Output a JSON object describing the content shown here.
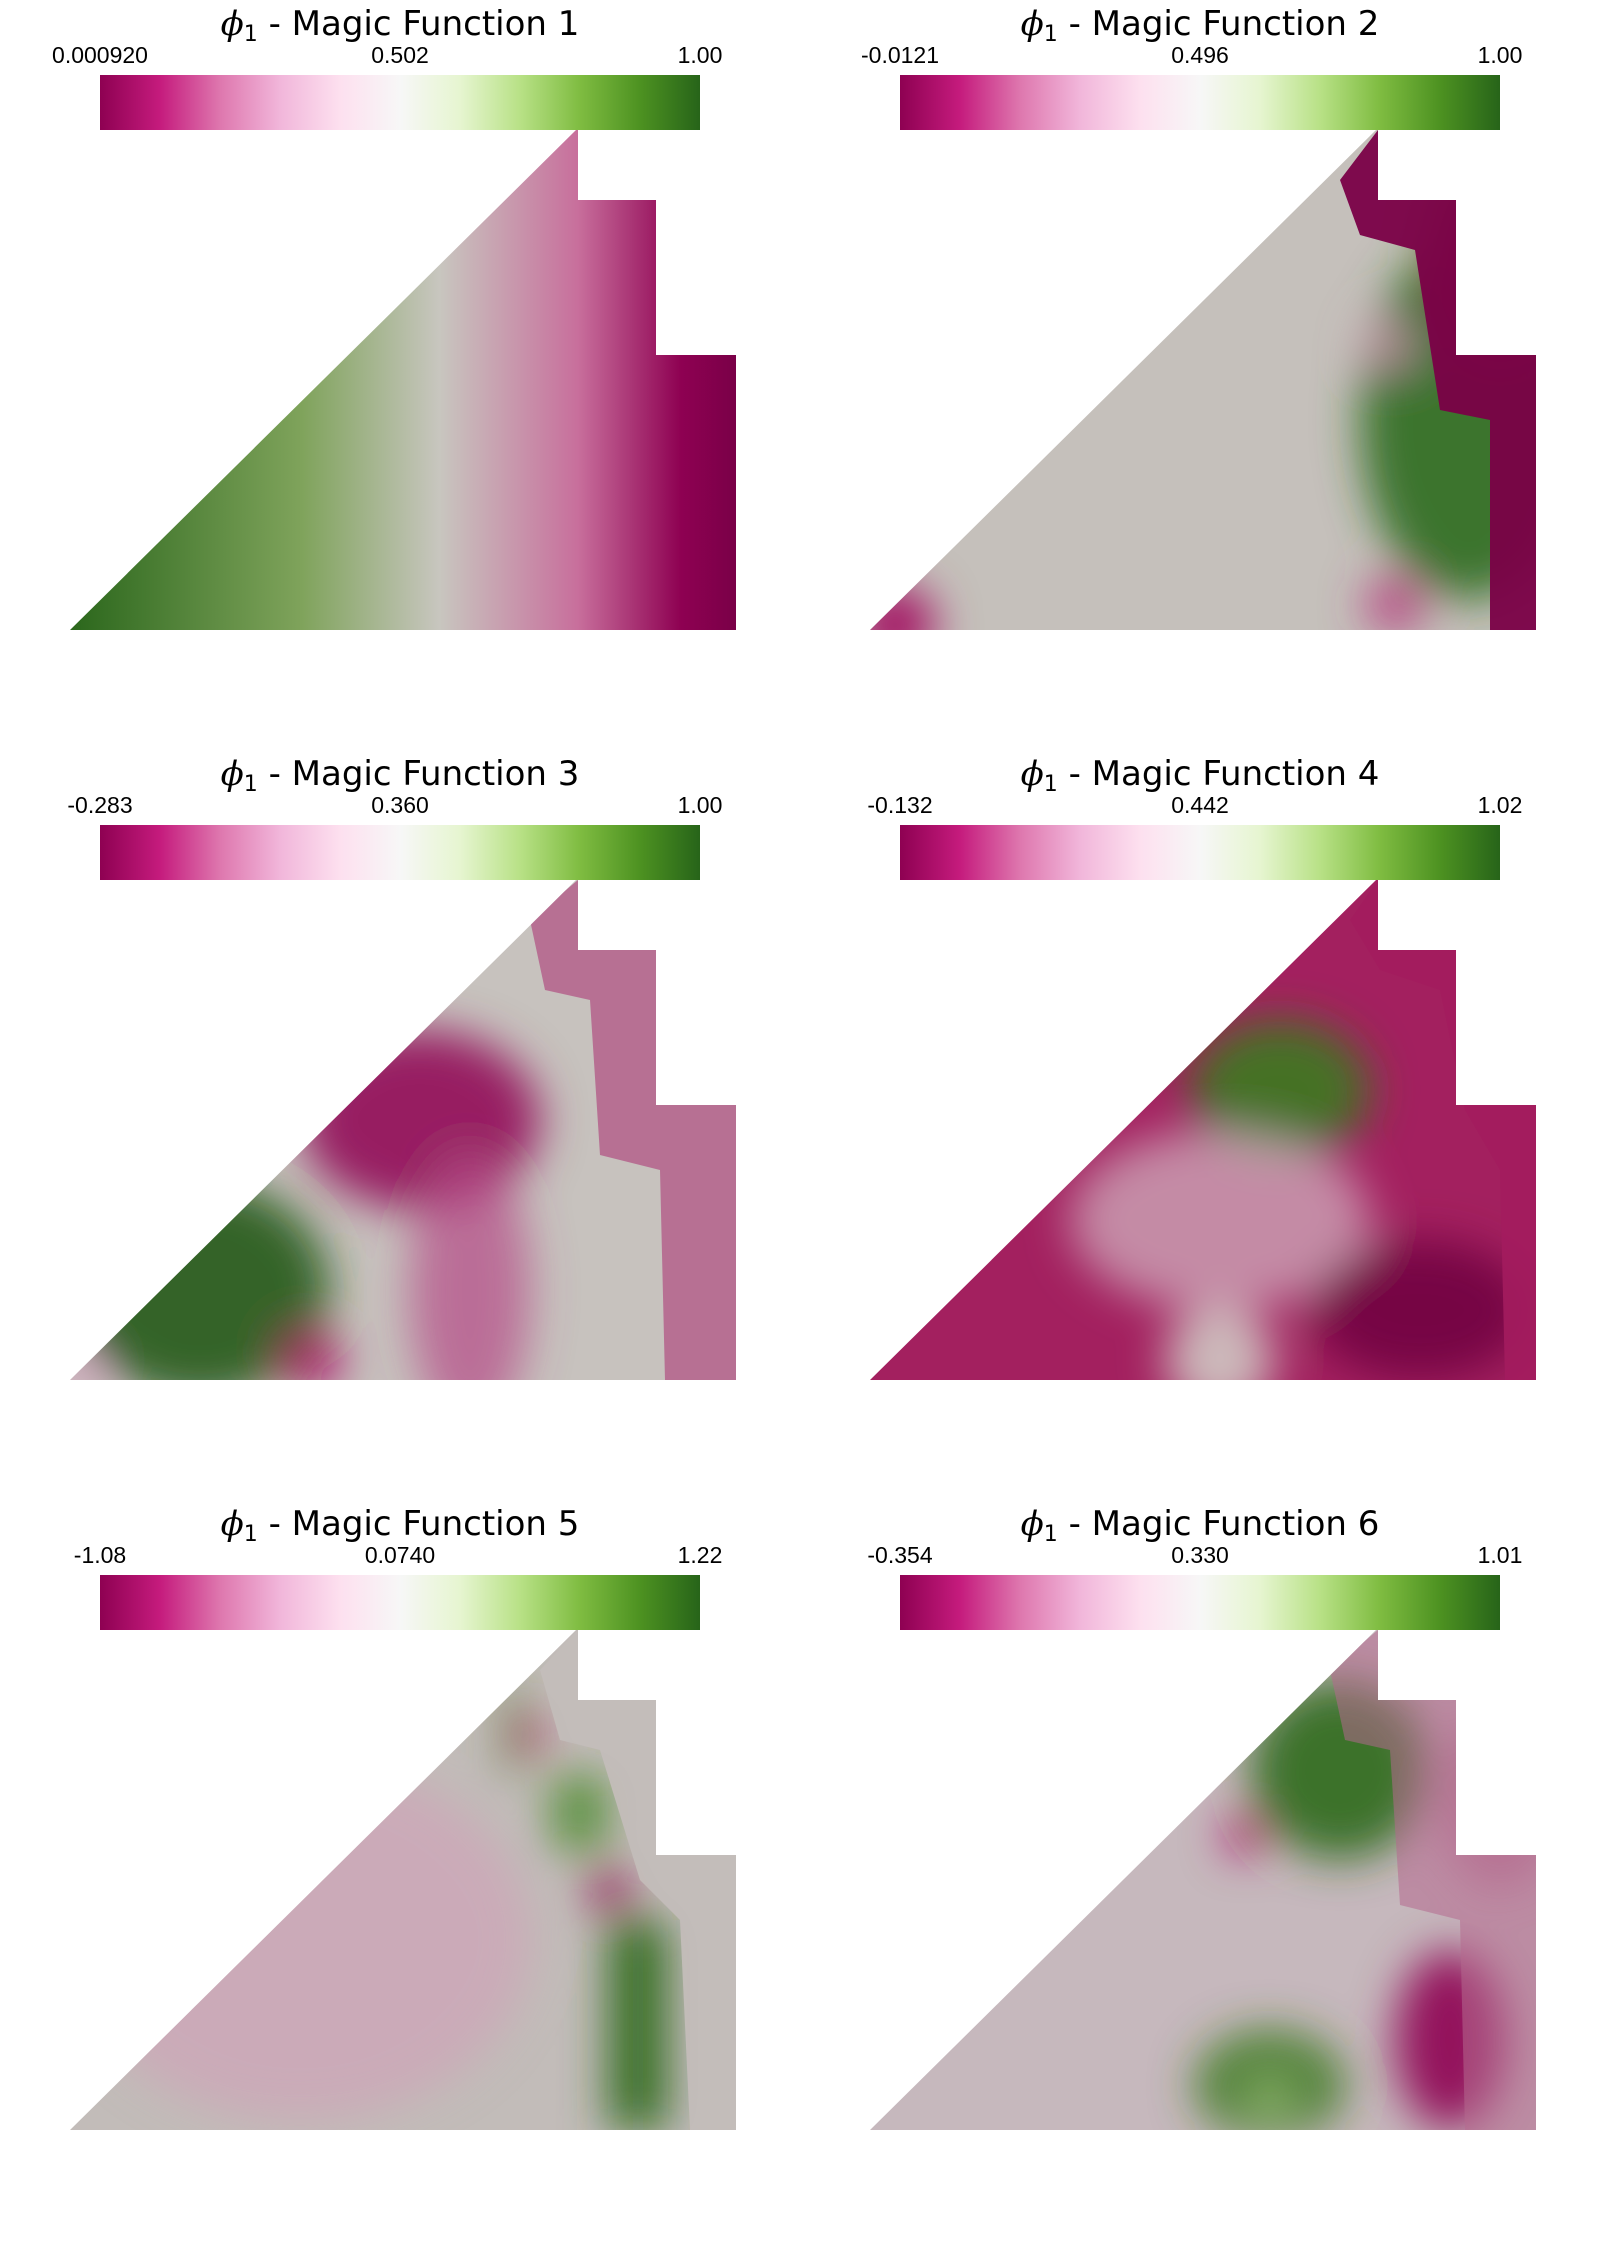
{
  "chart_data": [
    {
      "type": "heatmap",
      "title_prefix": "ϕ",
      "title_subscript": "1",
      "title_text": " - Magic Function 1",
      "colorbar": {
        "min": "0.000920",
        "mid": "0.502",
        "max": "1.00"
      },
      "colormap": [
        "#8e0152",
        "#c51b7d",
        "#de77ae",
        "#f1b6da",
        "#fde0ef",
        "#f7f7f7",
        "#e6f5d0",
        "#b8e186",
        "#7fbc41",
        "#4d9221",
        "#276419"
      ]
    },
    {
      "type": "heatmap",
      "title_prefix": "ϕ",
      "title_subscript": "1",
      "title_text": " - Magic Function 2",
      "colorbar": {
        "min": "-0.0121",
        "mid": "0.496",
        "max": "1.00"
      },
      "colormap": [
        "#8e0152",
        "#c51b7d",
        "#de77ae",
        "#f1b6da",
        "#fde0ef",
        "#f7f7f7",
        "#e6f5d0",
        "#b8e186",
        "#7fbc41",
        "#4d9221",
        "#276419"
      ]
    },
    {
      "type": "heatmap",
      "title_prefix": "ϕ",
      "title_subscript": "1",
      "title_text": " - Magic Function 3",
      "colorbar": {
        "min": "-0.283",
        "mid": "0.360",
        "max": "1.00"
      },
      "colormap": [
        "#8e0152",
        "#c51b7d",
        "#de77ae",
        "#f1b6da",
        "#fde0ef",
        "#f7f7f7",
        "#e6f5d0",
        "#b8e186",
        "#7fbc41",
        "#4d9221",
        "#276419"
      ]
    },
    {
      "type": "heatmap",
      "title_prefix": "ϕ",
      "title_subscript": "1",
      "title_text": " - Magic Function 4",
      "colorbar": {
        "min": "-0.132",
        "mid": "0.442",
        "max": "1.02"
      },
      "colormap": [
        "#8e0152",
        "#c51b7d",
        "#de77ae",
        "#f1b6da",
        "#fde0ef",
        "#f7f7f7",
        "#e6f5d0",
        "#b8e186",
        "#7fbc41",
        "#4d9221",
        "#276419"
      ]
    },
    {
      "type": "heatmap",
      "title_prefix": "ϕ",
      "title_subscript": "1",
      "title_text": " - Magic Function 5",
      "colorbar": {
        "min": "-1.08",
        "mid": "0.0740",
        "max": "1.22"
      },
      "colormap": [
        "#8e0152",
        "#c51b7d",
        "#de77ae",
        "#f1b6da",
        "#fde0ef",
        "#f7f7f7",
        "#e6f5d0",
        "#b8e186",
        "#7fbc41",
        "#4d9221",
        "#276419"
      ]
    },
    {
      "type": "heatmap",
      "title_prefix": "ϕ",
      "title_subscript": "1",
      "title_text": " - Magic Function 6",
      "colorbar": {
        "min": "-0.354",
        "mid": "0.330",
        "max": "1.01"
      },
      "colormap": [
        "#8e0152",
        "#c51b7d",
        "#de77ae",
        "#f1b6da",
        "#fde0ef",
        "#f7f7f7",
        "#e6f5d0",
        "#b8e186",
        "#7fbc41",
        "#4d9221",
        "#276419"
      ]
    }
  ]
}
